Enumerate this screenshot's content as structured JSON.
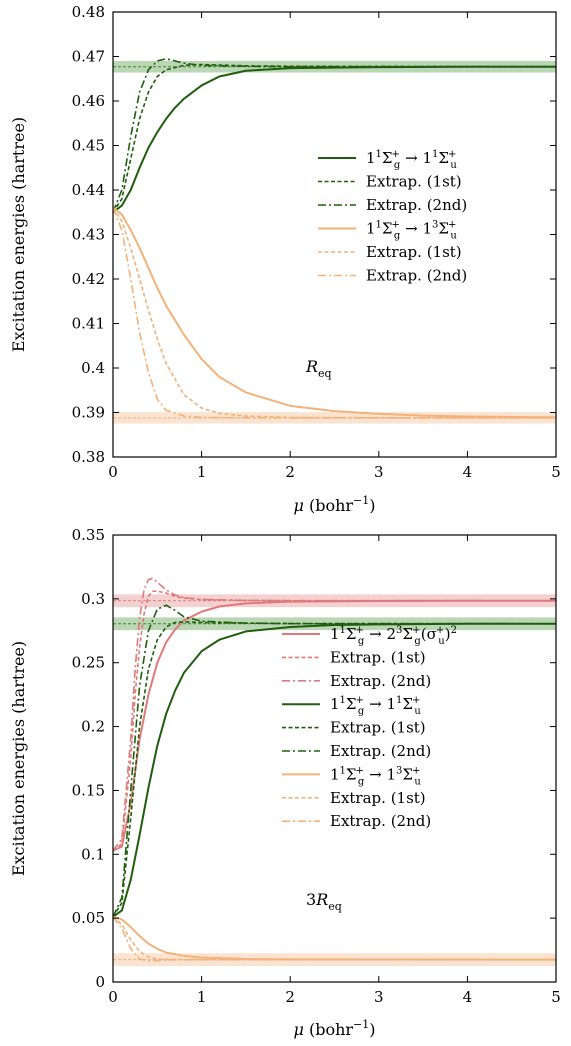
{
  "chart_data": [
    {
      "type": "line",
      "annotation": "R_eq",
      "xlabel": "μ (bohr⁻¹)",
      "ylabel": "Excitation energies (hartree)",
      "xlim": [
        0,
        5
      ],
      "ylim": [
        0.38,
        0.48
      ],
      "xticks": [
        "0",
        "1",
        "2",
        "3",
        "4",
        "5"
      ],
      "yticks": [
        "0.38",
        "0.39",
        "0.4",
        "0.41",
        "0.42",
        "0.43",
        "0.44",
        "0.45",
        "0.46",
        "0.47",
        "0.48"
      ],
      "legend_position": "right",
      "reference_bands": [
        {
          "y": 0.4677,
          "halfwidth": 0.0013,
          "color": "#3a8a2a"
        },
        {
          "y": 0.3888,
          "halfwidth": 0.0013,
          "color": "#f2b27a"
        }
      ],
      "series": [
        {
          "name": "1¹Σg⁺ → 1¹Σu⁺",
          "color": "#1f5e0d",
          "style": "solid",
          "x": [
            0,
            0.1,
            0.2,
            0.3,
            0.4,
            0.5,
            0.6,
            0.7,
            0.8,
            1.0,
            1.2,
            1.5,
            2.0,
            3.0,
            4.0,
            5.0
          ],
          "y": [
            0.435,
            0.4365,
            0.44,
            0.445,
            0.4495,
            0.453,
            0.456,
            0.4585,
            0.4605,
            0.4635,
            0.4655,
            0.4668,
            0.4674,
            0.4676,
            0.4677,
            0.4677
          ]
        },
        {
          "name": "Extrap. (1st)",
          "color": "#1f5e0d",
          "style": "dashed",
          "x": [
            0,
            0.1,
            0.2,
            0.3,
            0.4,
            0.5,
            0.6,
            0.8,
            1.0,
            1.5,
            2.0,
            5.0
          ],
          "y": [
            0.435,
            0.438,
            0.447,
            0.456,
            0.462,
            0.4655,
            0.467,
            0.468,
            0.4682,
            0.4679,
            0.4678,
            0.4677
          ]
        },
        {
          "name": "Extrap. (2nd)",
          "color": "#1f5e0d",
          "style": "dashdot",
          "x": [
            0,
            0.1,
            0.2,
            0.3,
            0.4,
            0.5,
            0.6,
            0.7,
            0.8,
            1.0,
            1.5,
            2.0,
            5.0
          ],
          "y": [
            0.435,
            0.44,
            0.452,
            0.462,
            0.467,
            0.469,
            0.4695,
            0.469,
            0.4685,
            0.468,
            0.4678,
            0.4677,
            0.4677
          ]
        },
        {
          "name": "1¹Σg⁺ → 1³Σu⁺",
          "color": "#f2b27a",
          "style": "solid",
          "x": [
            0,
            0.1,
            0.2,
            0.3,
            0.4,
            0.5,
            0.6,
            0.8,
            1.0,
            1.2,
            1.5,
            2.0,
            2.5,
            3.0,
            3.5,
            4.0,
            4.5,
            5.0
          ],
          "y": [
            0.436,
            0.4345,
            0.431,
            0.427,
            0.4225,
            0.418,
            0.414,
            0.4075,
            0.402,
            0.398,
            0.3945,
            0.3915,
            0.3903,
            0.3897,
            0.3893,
            0.3891,
            0.389,
            0.3889
          ]
        },
        {
          "name": "Extrap. (1st)",
          "color": "#f2b27a",
          "style": "dashed",
          "x": [
            0,
            0.1,
            0.2,
            0.3,
            0.4,
            0.5,
            0.6,
            0.8,
            1.0,
            1.2,
            1.5,
            2.0,
            3.0,
            5.0
          ],
          "y": [
            0.436,
            0.433,
            0.427,
            0.42,
            0.413,
            0.4065,
            0.401,
            0.394,
            0.391,
            0.3898,
            0.3892,
            0.3889,
            0.3888,
            0.3888
          ]
        },
        {
          "name": "Extrap. (2nd)",
          "color": "#f2b27a",
          "style": "dashdot",
          "x": [
            0,
            0.1,
            0.2,
            0.3,
            0.4,
            0.5,
            0.6,
            0.8,
            1.0,
            1.5,
            2.0,
            5.0
          ],
          "y": [
            0.436,
            0.431,
            0.42,
            0.408,
            0.399,
            0.393,
            0.3905,
            0.3892,
            0.3889,
            0.3888,
            0.3888,
            0.3888
          ]
        }
      ]
    },
    {
      "type": "line",
      "annotation": "3R_eq",
      "xlabel": "μ (bohr⁻¹)",
      "ylabel": "Excitation energies (hartree)",
      "xlim": [
        0,
        5
      ],
      "ylim": [
        0,
        0.35
      ],
      "xticks": [
        "0",
        "1",
        "2",
        "3",
        "4",
        "5"
      ],
      "yticks": [
        "0",
        "0.05",
        "0.1",
        "0.15",
        "0.2",
        "0.25",
        "0.3",
        "0.35"
      ],
      "legend_position": "right",
      "reference_bands": [
        {
          "y": 0.2985,
          "halfwidth": 0.005,
          "color": "#e07a7a"
        },
        {
          "y": 0.2805,
          "halfwidth": 0.005,
          "color": "#3a8a2a"
        },
        {
          "y": 0.0175,
          "halfwidth": 0.005,
          "color": "#f2b27a"
        }
      ],
      "series": [
        {
          "name": "1¹Σg⁺ → 2³Σg⁺(σu⁺)²",
          "color": "#e07a7a",
          "style": "solid",
          "x": [
            0,
            0.1,
            0.2,
            0.3,
            0.4,
            0.5,
            0.6,
            0.7,
            0.8,
            1.0,
            1.2,
            1.5,
            2.0,
            3.0,
            4.0,
            5.0
          ],
          "y": [
            0.103,
            0.106,
            0.14,
            0.19,
            0.225,
            0.25,
            0.266,
            0.276,
            0.283,
            0.29,
            0.294,
            0.2965,
            0.2978,
            0.2983,
            0.2985,
            0.2985
          ]
        },
        {
          "name": "Extrap. (1st)",
          "color": "#e07a7a",
          "style": "dashed",
          "x": [
            0,
            0.1,
            0.2,
            0.25,
            0.3,
            0.35,
            0.4,
            0.45,
            0.5,
            0.6,
            0.7,
            0.8,
            1.0,
            1.5,
            2.0,
            5.0
          ],
          "y": [
            0.103,
            0.108,
            0.175,
            0.225,
            0.262,
            0.288,
            0.302,
            0.306,
            0.306,
            0.3045,
            0.302,
            0.3005,
            0.2995,
            0.2988,
            0.2986,
            0.2985
          ]
        },
        {
          "name": "Extrap. (2nd)",
          "color": "#e07a7a",
          "style": "dashdot",
          "x": [
            0,
            0.1,
            0.2,
            0.25,
            0.3,
            0.35,
            0.4,
            0.45,
            0.5,
            0.6,
            0.7,
            0.8,
            1.0,
            1.5,
            2.0,
            5.0
          ],
          "y": [
            0.103,
            0.112,
            0.19,
            0.245,
            0.285,
            0.307,
            0.315,
            0.316,
            0.313,
            0.307,
            0.303,
            0.301,
            0.2995,
            0.2988,
            0.2986,
            0.2985
          ]
        },
        {
          "name": "1¹Σg⁺ → 1¹Σu⁺",
          "color": "#1f5e0d",
          "style": "solid",
          "x": [
            0,
            0.1,
            0.2,
            0.3,
            0.4,
            0.5,
            0.6,
            0.7,
            0.8,
            1.0,
            1.2,
            1.5,
            2.0,
            2.5,
            3.0,
            4.0,
            5.0
          ],
          "y": [
            0.051,
            0.056,
            0.08,
            0.115,
            0.152,
            0.185,
            0.21,
            0.228,
            0.242,
            0.259,
            0.268,
            0.2745,
            0.278,
            0.2795,
            0.28,
            0.2805,
            0.2805
          ]
        },
        {
          "name": "Extrap. (1st)",
          "color": "#1f5e0d",
          "style": "dashed",
          "x": [
            0,
            0.1,
            0.2,
            0.3,
            0.4,
            0.5,
            0.6,
            0.7,
            0.8,
            1.0,
            1.5,
            2.0,
            5.0
          ],
          "y": [
            0.051,
            0.062,
            0.128,
            0.2,
            0.245,
            0.268,
            0.278,
            0.2815,
            0.282,
            0.2815,
            0.281,
            0.2807,
            0.2805
          ]
        },
        {
          "name": "Extrap. (2nd)",
          "color": "#1f5e0d",
          "style": "dashdot",
          "x": [
            0,
            0.1,
            0.2,
            0.3,
            0.4,
            0.5,
            0.6,
            0.7,
            0.8,
            1.0,
            1.5,
            2.0,
            5.0
          ],
          "y": [
            0.051,
            0.066,
            0.15,
            0.232,
            0.275,
            0.292,
            0.295,
            0.291,
            0.286,
            0.2825,
            0.281,
            0.2806,
            0.2805
          ]
        },
        {
          "name": "1¹Σg⁺ → 1³Σu⁺",
          "color": "#f2b27a",
          "style": "solid",
          "x": [
            0,
            0.1,
            0.2,
            0.3,
            0.4,
            0.5,
            0.6,
            0.8,
            1.0,
            1.5,
            2.0,
            3.0,
            5.0
          ],
          "y": [
            0.051,
            0.049,
            0.043,
            0.036,
            0.03,
            0.026,
            0.023,
            0.0205,
            0.0192,
            0.018,
            0.0177,
            0.0176,
            0.0175
          ]
        },
        {
          "name": "Extrap. (1st)",
          "color": "#f2b27a",
          "style": "dashed",
          "x": [
            0,
            0.1,
            0.2,
            0.3,
            0.4,
            0.5,
            0.6,
            0.8,
            1.0,
            2.0,
            5.0
          ],
          "y": [
            0.051,
            0.045,
            0.033,
            0.024,
            0.0195,
            0.018,
            0.0177,
            0.0176,
            0.0175,
            0.0175,
            0.0175
          ]
        },
        {
          "name": "Extrap. (2nd)",
          "color": "#f2b27a",
          "style": "dashdot",
          "x": [
            0,
            0.1,
            0.2,
            0.3,
            0.4,
            0.5,
            0.6,
            0.8,
            1.0,
            2.0,
            5.0
          ],
          "y": [
            0.051,
            0.042,
            0.026,
            0.018,
            0.0165,
            0.0168,
            0.0172,
            0.0174,
            0.0175,
            0.0175,
            0.0175
          ]
        }
      ]
    }
  ]
}
